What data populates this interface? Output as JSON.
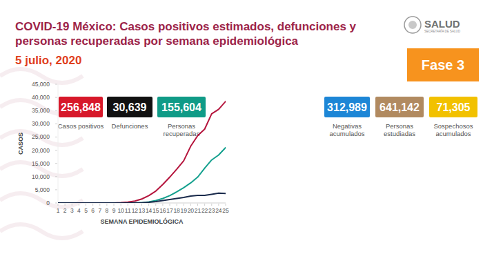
{
  "header": {
    "logo": "SALUD",
    "logo_subtitle": "SECRETARÍA DE SALUD",
    "phase": "Fase 3"
  },
  "stats": [
    {
      "text": "256,848",
      "label": [
        "Casos positivos"
      ],
      "color": "#d7182a"
    },
    {
      "text": "30,639",
      "label": [
        "Defunciones"
      ],
      "color": "#111111"
    },
    {
      "text": "155,604",
      "label": [
        "Personas",
        "recuperadas"
      ],
      "color": "#109b87"
    },
    {
      "text": "312,989",
      "label": [
        "Negativas",
        "acumulados"
      ],
      "color": "#1d86d6"
    },
    {
      "text": "641,142",
      "label": [
        "Personas",
        "estudiadas"
      ],
      "color": "#b18a60"
    },
    {
      "text": "71,305",
      "label": [
        "Sospechosos",
        "acumulados"
      ],
      "color": "#f2c100"
    }
  ],
  "chart_data": {
    "type": "line",
    "title": "COVID-19 México: Casos positivos estimados, defunciones y personas recuperadas por semana epidemiológica",
    "subtitle": "5 julio, 2020",
    "x_label": "SEMANA EPIDEMIOLÓGICA",
    "y_label": "CASOS",
    "x": [
      1,
      2,
      3,
      4,
      5,
      6,
      7,
      8,
      9,
      10,
      11,
      12,
      13,
      14,
      15,
      16,
      17,
      18,
      19,
      20,
      21,
      22,
      23,
      24,
      25
    ],
    "xlim": [
      1,
      25
    ],
    "xticks": [
      1,
      2,
      3,
      4,
      5,
      6,
      7,
      8,
      9,
      10,
      11,
      12,
      13,
      14,
      15,
      16,
      17,
      18,
      19,
      20,
      21,
      22,
      23,
      24,
      25
    ],
    "ylim": [
      0,
      45000
    ],
    "yticks": [
      0,
      {
        "value": 5000,
        "label": "5,000"
      },
      {
        "value": 10000,
        "label": "10,000"
      },
      {
        "value": 15000,
        "label": "15,000"
      },
      {
        "value": 20000,
        "label": "20,000"
      },
      {
        "value": 25000,
        "label": "25,000"
      },
      {
        "value": 30000,
        "label": "30,000"
      },
      {
        "value": 35000,
        "label": "35,000"
      },
      {
        "value": 40000,
        "label": "40,000"
      },
      {
        "value": 45000,
        "label": "45,000"
      }
    ],
    "grid": false,
    "series": [
      {
        "color": "#b5153d",
        "values": [
          0,
          0,
          0,
          0,
          0,
          0,
          0,
          0,
          20,
          100,
          300,
          700,
          1500,
          2800,
          4500,
          7000,
          9800,
          12800,
          16000,
          21500,
          25500,
          28000,
          33800,
          35500,
          38500
        ]
      },
      {
        "color": "#14a08e",
        "values": [
          0,
          0,
          0,
          0,
          0,
          0,
          0,
          0,
          0,
          0,
          20,
          50,
          100,
          400,
          900,
          1700,
          2800,
          4200,
          5800,
          7600,
          9800,
          13200,
          16300,
          18200,
          21000
        ]
      },
      {
        "color": "#1a2b4c",
        "values": [
          0,
          0,
          0,
          0,
          0,
          0,
          0,
          0,
          0,
          0,
          10,
          30,
          80,
          250,
          500,
          900,
          1300,
          1700,
          2100,
          2600,
          2900,
          2900,
          3300,
          3700,
          3600
        ]
      }
    ]
  }
}
